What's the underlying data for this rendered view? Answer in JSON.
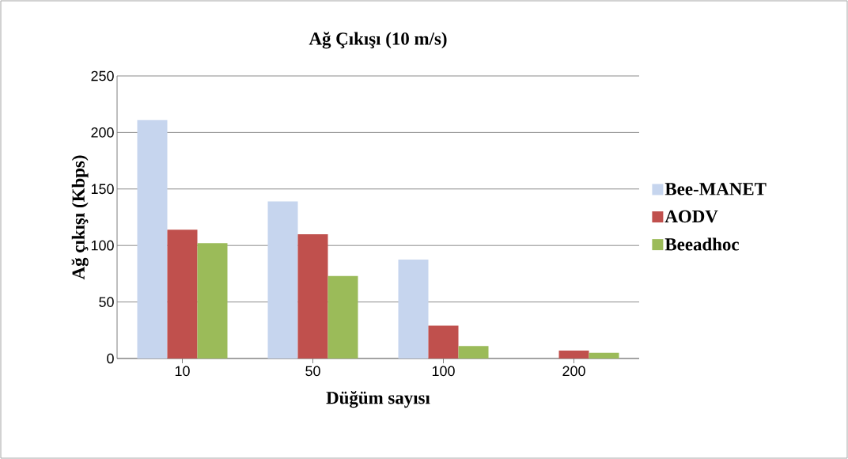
{
  "chart_data": {
    "type": "bar",
    "title": "Ağ Çıkışı (10 m/s)",
    "xlabel": "Düğüm sayısı",
    "ylabel": "Ağ çıkışı (Kbps)",
    "categories": [
      "10",
      "50",
      "100",
      "200"
    ],
    "series": [
      {
        "name": "Bee-MANET",
        "color": "#c6d5ee",
        "values": [
          211,
          139,
          87.5,
          0
        ]
      },
      {
        "name": "AODV",
        "color": "#c0504d",
        "values": [
          114,
          110,
          29,
          7
        ]
      },
      {
        "name": "Beeadhoc",
        "color": "#9bbb59",
        "values": [
          102,
          73,
          11,
          5
        ]
      }
    ],
    "ylim": [
      0,
      250
    ],
    "yticks": [
      0,
      50,
      100,
      150,
      200,
      250
    ],
    "grid": "y",
    "legend": "right"
  }
}
